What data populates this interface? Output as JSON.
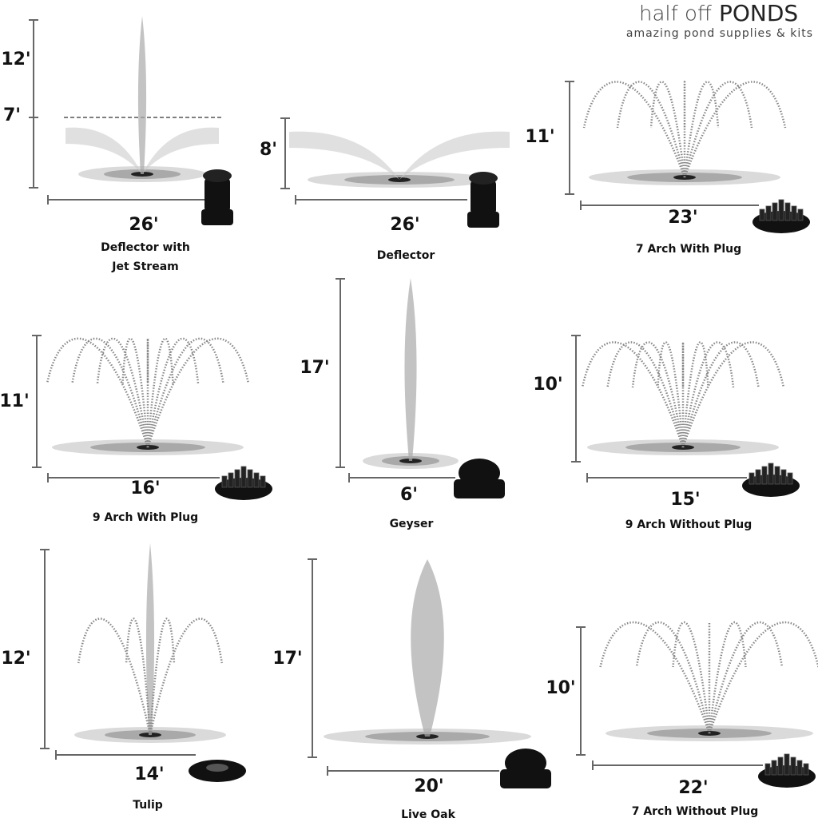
{
  "header": {
    "brand_light": "half off",
    "brand_bold": "PONDS",
    "tagline": "amazing pond supplies & kits"
  },
  "panels": [
    {
      "name": "Deflector with Jet Stream",
      "height": "12'",
      "mid_height": "7'",
      "width": "26'"
    },
    {
      "name": "Deflector",
      "height": "8'",
      "width": "26'"
    },
    {
      "name": "7 Arch With Plug",
      "height": "11'",
      "width": "23'"
    },
    {
      "name": "9 Arch With Plug",
      "height": "11'",
      "width": "16'"
    },
    {
      "name": "Geyser",
      "height": "17'",
      "width": "6'"
    },
    {
      "name": "9 Arch Without Plug",
      "height": "10'",
      "width": "15'"
    },
    {
      "name": "Tulip",
      "height": "12'",
      "width": "14'"
    },
    {
      "name": "Live Oak",
      "height": "17'",
      "width": "20'"
    },
    {
      "name": "7 Arch Without Plug",
      "height": "10'",
      "width": "22'"
    }
  ]
}
